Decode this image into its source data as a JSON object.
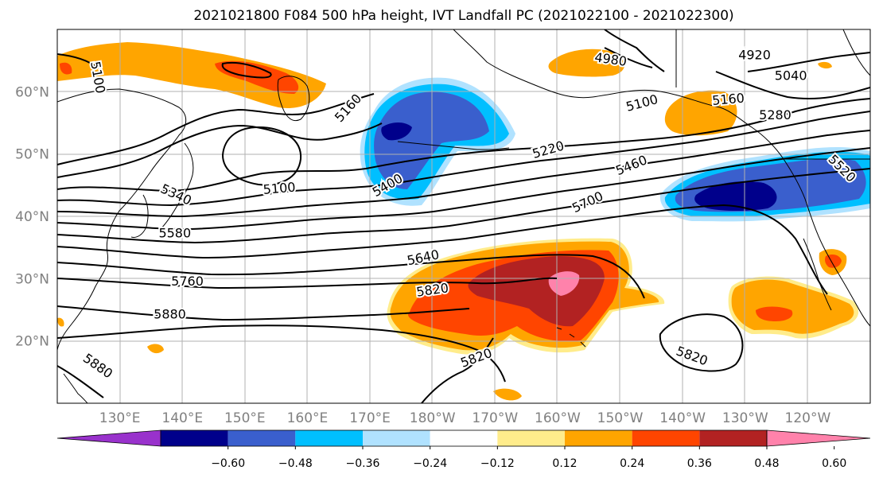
{
  "title": "2021021800 F084 500 hPa height, IVT Landfall PC (2021022100 - 2021022300)",
  "map": {
    "lat_labels": [
      {
        "text": "60°N",
        "lat": 60
      },
      {
        "text": "50°N",
        "lat": 50
      },
      {
        "text": "40°N",
        "lat": 40
      },
      {
        "text": "30°N",
        "lat": 30
      },
      {
        "text": "20°N",
        "lat": 20
      }
    ],
    "lon_labels": [
      {
        "text": "130°E",
        "lon": 130
      },
      {
        "text": "140°E",
        "lon": 140
      },
      {
        "text": "150°E",
        "lon": 150
      },
      {
        "text": "160°E",
        "lon": 160
      },
      {
        "text": "170°E",
        "lon": 170
      },
      {
        "text": "180°W",
        "lon": 180
      },
      {
        "text": "170°W",
        "lon": 190
      },
      {
        "text": "160°W",
        "lon": 200
      },
      {
        "text": "150°W",
        "lon": 210
      },
      {
        "text": "140°W",
        "lon": 220
      },
      {
        "text": "130°W",
        "lon": 230
      },
      {
        "text": "120°W",
        "lon": 240
      }
    ],
    "extent": {
      "lon_min": 120,
      "lon_max": 250,
      "lat_min": 10,
      "lat_max": 70
    }
  },
  "contour_labels": [
    {
      "text": "5100",
      "lon": 126.5,
      "lat": 62.3,
      "rot": 80
    },
    {
      "text": "4980",
      "lon": 208.5,
      "lat": 65.2,
      "rot": 8
    },
    {
      "text": "4920",
      "lon": 231.5,
      "lat": 65.9,
      "rot": 0
    },
    {
      "text": "5040",
      "lon": 237.3,
      "lat": 62.6,
      "rot": 0
    },
    {
      "text": "5160",
      "lon": 166.5,
      "lat": 57.4,
      "rot": -48
    },
    {
      "text": "5100",
      "lon": 213.5,
      "lat": 58.2,
      "rot": -15
    },
    {
      "text": "5160",
      "lon": 227.3,
      "lat": 58.8,
      "rot": -5
    },
    {
      "text": "5280",
      "lon": 234.8,
      "lat": 56.3,
      "rot": 0
    },
    {
      "text": "5220",
      "lon": 198.5,
      "lat": 50.7,
      "rot": -16
    },
    {
      "text": "5100",
      "lon": 155.5,
      "lat": 44.5,
      "rot": -5
    },
    {
      "text": "5400",
      "lon": 172.8,
      "lat": 45.0,
      "rot": -30
    },
    {
      "text": "5460",
      "lon": 211.8,
      "lat": 48.2,
      "rot": -22
    },
    {
      "text": "5520",
      "lon": 245.5,
      "lat": 47.7,
      "rot": 45
    },
    {
      "text": "5340",
      "lon": 139.0,
      "lat": 43.5,
      "rot": 25
    },
    {
      "text": "5700",
      "lon": 204.8,
      "lat": 42.3,
      "rot": -25
    },
    {
      "text": "5580",
      "lon": 138.8,
      "lat": 37.3,
      "rot": 0
    },
    {
      "text": "5640",
      "lon": 178.5,
      "lat": 33.4,
      "rot": -12
    },
    {
      "text": "5760",
      "lon": 140.8,
      "lat": 29.6,
      "rot": 0
    },
    {
      "text": "5820",
      "lon": 180.0,
      "lat": 28.2,
      "rot": -8
    },
    {
      "text": "5880",
      "lon": 138.0,
      "lat": 24.3,
      "rot": 0
    },
    {
      "text": "5880",
      "lon": 126.5,
      "lat": 16.0,
      "rot": 35
    },
    {
      "text": "5820",
      "lon": 187.0,
      "lat": 17.3,
      "rot": -20
    },
    {
      "text": "5820",
      "lon": 221.5,
      "lat": 17.6,
      "rot": 20
    }
  ],
  "colorbar": {
    "colors": [
      "#9932cc",
      "#00008b",
      "#3a5fcd",
      "#00bfff",
      "#b0e2ff",
      "#ffffff",
      "#ffec8b",
      "#ffa500",
      "#ff4500",
      "#b22222",
      "#ff82ab"
    ],
    "labels": [
      "−0.60",
      "−0.48",
      "−0.36",
      "−0.24",
      "−0.12",
      "0.12",
      "0.24",
      "0.36",
      "0.48",
      "0.60"
    ]
  }
}
